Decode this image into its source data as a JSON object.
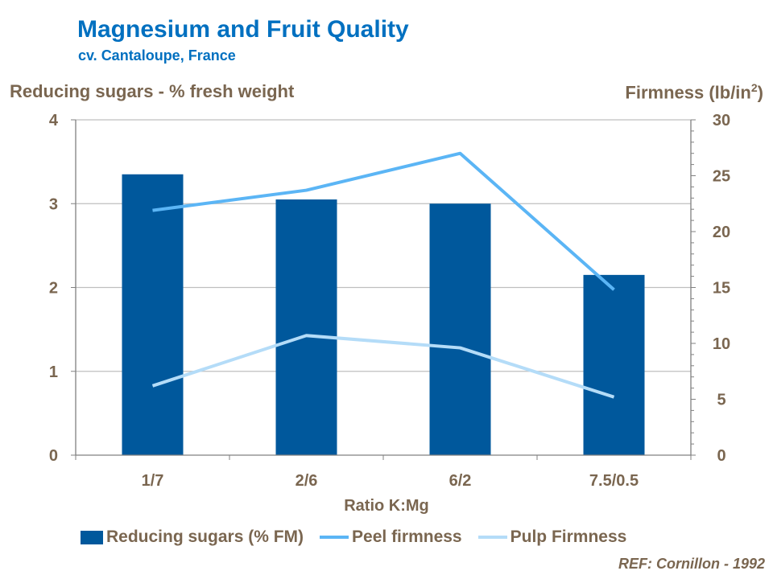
{
  "chart_data": {
    "type": "bar+line",
    "title": "Magnesium and Fruit Quality",
    "subtitle": "cv. Cantaloupe, France",
    "xlabel": "Ratio K:Mg",
    "ylabel": "Reducing sugars - % fresh weight",
    "y2label": "Firmness (lb/in²)",
    "categories": [
      "1/7",
      "2/6",
      "6/2",
      "7.5/0.5"
    ],
    "ylim": [
      0,
      4
    ],
    "y2lim": [
      0,
      30
    ],
    "yticks": [
      "0",
      "1",
      "2",
      "3",
      "4"
    ],
    "y2ticks": [
      "0",
      "5",
      "10",
      "15",
      "20",
      "25",
      "30"
    ],
    "grid": true,
    "legend_position": "bottom",
    "series": [
      {
        "name": "Reducing sugars (% FM)",
        "type": "bar",
        "axis": "left",
        "color": "#00589c",
        "values": [
          3.35,
          3.05,
          3.0,
          2.15
        ]
      },
      {
        "name": "Peel firmness",
        "type": "line",
        "axis": "right",
        "color": "#5bb5f5",
        "values": [
          21.9,
          23.7,
          27.0,
          14.8
        ]
      },
      {
        "name": "Pulp Firmness",
        "type": "line",
        "axis": "right",
        "color": "#b4dcf8",
        "values": [
          6.2,
          10.7,
          9.6,
          5.2
        ]
      }
    ],
    "reference": "REF: Cornillon - 1992"
  }
}
